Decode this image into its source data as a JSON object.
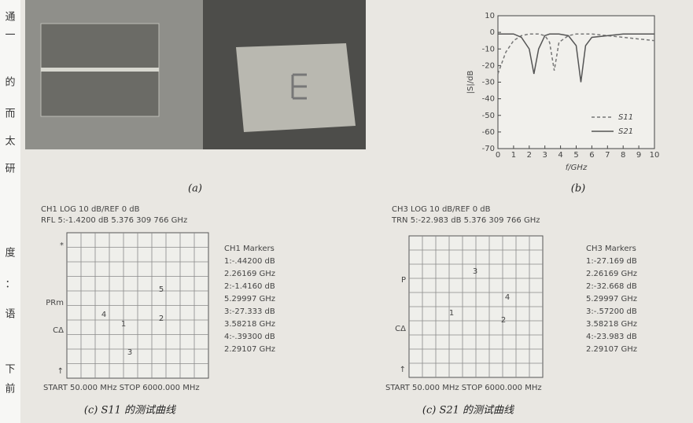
{
  "margin_text": [
    "通",
    "一",
    "的",
    "而",
    "太",
    "研",
    "度",
    "：",
    "语",
    "下",
    "前"
  ],
  "figure_a": {
    "caption": "(a)"
  },
  "chart_data": {
    "type": "line",
    "caption": "(b)",
    "ylabel": "|S|/dB",
    "xlabel": "f/GHz",
    "x": [
      0,
      0.5,
      1,
      1.5,
      2,
      2.3,
      2.6,
      3,
      3.3,
      3.6,
      3.9,
      4.5,
      5,
      5.3,
      5.6,
      6,
      7,
      8,
      9,
      10
    ],
    "series": [
      {
        "name": "S11",
        "color": "#777777",
        "line_style": "dashed",
        "values": [
          -25,
          -12,
          -5,
          -2,
          -1,
          -1,
          -1,
          -2,
          -6,
          -23,
          -6,
          -2,
          -1,
          -1,
          -1,
          -1,
          -2,
          -3,
          -4,
          -5
        ]
      },
      {
        "name": "S21",
        "color": "#555555",
        "line_style": "solid",
        "values": [
          -1,
          -1,
          -1,
          -3,
          -10,
          -25,
          -10,
          -2,
          -1,
          -1,
          -1,
          -2,
          -8,
          -30,
          -8,
          -3,
          -2,
          -1,
          -1,
          -1
        ]
      }
    ],
    "xlim": [
      0,
      10
    ],
    "xticks": [
      0,
      1,
      2,
      3,
      4,
      5,
      6,
      7,
      8,
      9,
      10
    ],
    "ylim": [
      -70,
      10
    ],
    "yticks": [
      10,
      0,
      -10,
      -20,
      -30,
      -40,
      -50,
      -60,
      -70
    ],
    "grid": false,
    "legend": "lower right"
  },
  "panel_c": {
    "header": [
      "CH1    LOG       10 dB/REF  0 dB",
      "RFL    5:-1.4200 dB   5.376 309 766 GHz"
    ],
    "side_labels": [
      "*",
      "PRm",
      "CΔ",
      "↑"
    ],
    "markers": [
      "CH1 Markers",
      "1:-.44200 dB",
      "2.26169 GHz",
      "2:-1.4160 dB",
      "5.29997 GHz",
      "3:-27.333 dB",
      "3.58218 GHz",
      "4:-.39300 dB",
      "2.29107 GHz"
    ],
    "trace_labels": [
      "4",
      "1",
      "3",
      "5",
      "2"
    ],
    "footer": "START 50.000 MHz  STOP 6000.000 MHz",
    "caption": "(c) S11 的测试曲线"
  },
  "panel_d": {
    "header": [
      "CH3    LOG       10 dB/REF  0 dB",
      "TRN    5:-22.983 dB   5.376 309 766 GHz"
    ],
    "side_labels": [
      "P",
      "CΔ",
      "↑"
    ],
    "markers": [
      "CH3 Markers",
      "1:-27.169 dB",
      "2.26169 GHz",
      "2:-32.668 dB",
      "5.29997 GHz",
      "3:-.57200 dB",
      "3.58218 GHz",
      "4:-23.983 dB",
      "2.29107 GHz"
    ],
    "trace_labels": [
      "1",
      "3",
      "4",
      "2"
    ],
    "footer": "START 50.000 MHz  STOP 6000.000 MHz",
    "caption": "(c) S21 的测试曲线"
  }
}
